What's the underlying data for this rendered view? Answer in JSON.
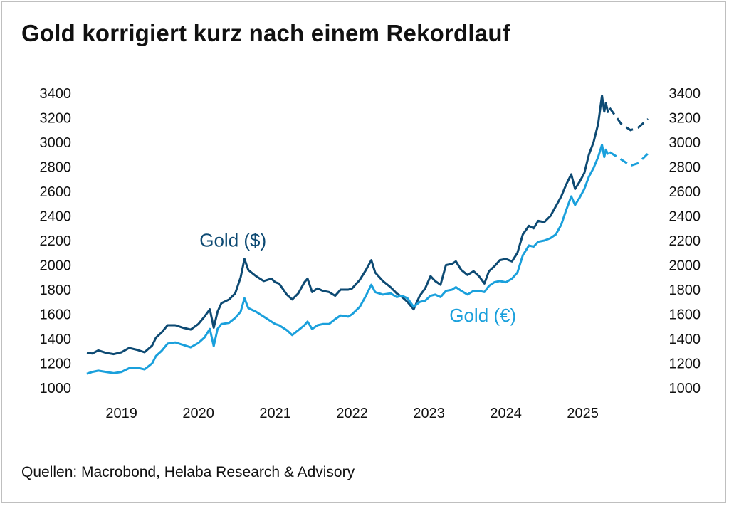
{
  "title": "Gold korrigiert kurz nach einem Rekordlauf",
  "source": "Quellen: Macrobond, Helaba Research & Advisory",
  "colors": {
    "gold_usd": "#0d4a73",
    "gold_eur": "#1aa0dc",
    "text": "#111111"
  },
  "chart_data": {
    "type": "line",
    "title": "Gold korrigiert kurz nach einem Rekordlauf",
    "xlabel": "",
    "ylabel": "",
    "x_range": [
      2018.55,
      2025.8
    ],
    "ylim": [
      1000,
      3400
    ],
    "y_ticks": [
      1000,
      1200,
      1400,
      1600,
      1800,
      2000,
      2200,
      2400,
      2600,
      2800,
      3000,
      3200,
      3400
    ],
    "x_ticks": [
      {
        "label": "2019",
        "x": 2019.0
      },
      {
        "label": "2020",
        "x": 2020.0
      },
      {
        "label": "2021",
        "x": 2021.0
      },
      {
        "label": "2022",
        "x": 2022.0
      },
      {
        "label": "2023",
        "x": 2023.0
      },
      {
        "label": "2024",
        "x": 2024.0
      },
      {
        "label": "2025",
        "x": 2025.0
      }
    ],
    "grid": false,
    "axes": "left and right, identical scale",
    "series": [
      {
        "name": "Gold ($)",
        "color": "#0d4a73",
        "points": [
          [
            2018.55,
            1285
          ],
          [
            2018.62,
            1280
          ],
          [
            2018.7,
            1305
          ],
          [
            2018.8,
            1285
          ],
          [
            2018.9,
            1275
          ],
          [
            2019.0,
            1290
          ],
          [
            2019.1,
            1325
          ],
          [
            2019.2,
            1310
          ],
          [
            2019.3,
            1290
          ],
          [
            2019.4,
            1345
          ],
          [
            2019.45,
            1410
          ],
          [
            2019.52,
            1450
          ],
          [
            2019.6,
            1510
          ],
          [
            2019.7,
            1510
          ],
          [
            2019.8,
            1490
          ],
          [
            2019.9,
            1475
          ],
          [
            2020.0,
            1520
          ],
          [
            2020.08,
            1580
          ],
          [
            2020.15,
            1640
          ],
          [
            2020.2,
            1490
          ],
          [
            2020.25,
            1620
          ],
          [
            2020.3,
            1690
          ],
          [
            2020.4,
            1720
          ],
          [
            2020.48,
            1770
          ],
          [
            2020.55,
            1900
          ],
          [
            2020.6,
            2050
          ],
          [
            2020.65,
            1960
          ],
          [
            2020.75,
            1910
          ],
          [
            2020.85,
            1870
          ],
          [
            2020.95,
            1890
          ],
          [
            2021.0,
            1860
          ],
          [
            2021.05,
            1850
          ],
          [
            2021.15,
            1760
          ],
          [
            2021.22,
            1720
          ],
          [
            2021.3,
            1770
          ],
          [
            2021.38,
            1860
          ],
          [
            2021.42,
            1890
          ],
          [
            2021.48,
            1780
          ],
          [
            2021.55,
            1810
          ],
          [
            2021.62,
            1790
          ],
          [
            2021.7,
            1780
          ],
          [
            2021.78,
            1750
          ],
          [
            2021.85,
            1800
          ],
          [
            2021.95,
            1800
          ],
          [
            2022.0,
            1810
          ],
          [
            2022.1,
            1880
          ],
          [
            2022.18,
            1960
          ],
          [
            2022.25,
            2040
          ],
          [
            2022.3,
            1940
          ],
          [
            2022.4,
            1870
          ],
          [
            2022.5,
            1820
          ],
          [
            2022.58,
            1770
          ],
          [
            2022.65,
            1740
          ],
          [
            2022.72,
            1700
          ],
          [
            2022.8,
            1640
          ],
          [
            2022.88,
            1750
          ],
          [
            2022.95,
            1810
          ],
          [
            2023.02,
            1910
          ],
          [
            2023.08,
            1870
          ],
          [
            2023.15,
            1840
          ],
          [
            2023.22,
            2000
          ],
          [
            2023.3,
            2010
          ],
          [
            2023.35,
            2030
          ],
          [
            2023.42,
            1960
          ],
          [
            2023.5,
            1920
          ],
          [
            2023.58,
            1950
          ],
          [
            2023.65,
            1910
          ],
          [
            2023.72,
            1850
          ],
          [
            2023.78,
            1950
          ],
          [
            2023.85,
            1990
          ],
          [
            2023.92,
            2040
          ],
          [
            2024.0,
            2050
          ],
          [
            2024.08,
            2030
          ],
          [
            2024.15,
            2100
          ],
          [
            2024.22,
            2250
          ],
          [
            2024.3,
            2320
          ],
          [
            2024.36,
            2300
          ],
          [
            2024.42,
            2360
          ],
          [
            2024.5,
            2350
          ],
          [
            2024.58,
            2400
          ],
          [
            2024.65,
            2480
          ],
          [
            2024.72,
            2560
          ],
          [
            2024.78,
            2650
          ],
          [
            2024.85,
            2740
          ],
          [
            2024.9,
            2620
          ],
          [
            2024.96,
            2680
          ],
          [
            2025.02,
            2750
          ],
          [
            2025.08,
            2900
          ],
          [
            2025.14,
            3000
          ],
          [
            2025.2,
            3150
          ],
          [
            2025.25,
            3380
          ],
          [
            2025.28,
            3250
          ],
          [
            2025.3,
            3320
          ],
          [
            2025.33,
            3240
          ]
        ],
        "forecast": [
          [
            2025.35,
            3280
          ],
          [
            2025.5,
            3150
          ],
          [
            2025.62,
            3100
          ],
          [
            2025.72,
            3120
          ],
          [
            2025.85,
            3190
          ]
        ]
      },
      {
        "name": "Gold (€)",
        "color": "#1aa0dc",
        "points": [
          [
            2018.55,
            1115
          ],
          [
            2018.62,
            1130
          ],
          [
            2018.7,
            1140
          ],
          [
            2018.8,
            1130
          ],
          [
            2018.9,
            1120
          ],
          [
            2019.0,
            1130
          ],
          [
            2019.1,
            1160
          ],
          [
            2019.2,
            1165
          ],
          [
            2019.3,
            1150
          ],
          [
            2019.4,
            1200
          ],
          [
            2019.45,
            1260
          ],
          [
            2019.52,
            1300
          ],
          [
            2019.6,
            1360
          ],
          [
            2019.7,
            1370
          ],
          [
            2019.8,
            1350
          ],
          [
            2019.9,
            1330
          ],
          [
            2020.0,
            1365
          ],
          [
            2020.08,
            1410
          ],
          [
            2020.15,
            1480
          ],
          [
            2020.2,
            1340
          ],
          [
            2020.25,
            1480
          ],
          [
            2020.3,
            1520
          ],
          [
            2020.4,
            1530
          ],
          [
            2020.48,
            1570
          ],
          [
            2020.55,
            1620
          ],
          [
            2020.6,
            1730
          ],
          [
            2020.65,
            1650
          ],
          [
            2020.75,
            1620
          ],
          [
            2020.85,
            1580
          ],
          [
            2020.95,
            1540
          ],
          [
            2021.0,
            1520
          ],
          [
            2021.05,
            1510
          ],
          [
            2021.15,
            1470
          ],
          [
            2021.22,
            1430
          ],
          [
            2021.3,
            1470
          ],
          [
            2021.38,
            1510
          ],
          [
            2021.42,
            1540
          ],
          [
            2021.48,
            1480
          ],
          [
            2021.55,
            1510
          ],
          [
            2021.62,
            1520
          ],
          [
            2021.7,
            1520
          ],
          [
            2021.78,
            1560
          ],
          [
            2021.85,
            1590
          ],
          [
            2021.95,
            1580
          ],
          [
            2022.0,
            1600
          ],
          [
            2022.1,
            1660
          ],
          [
            2022.18,
            1750
          ],
          [
            2022.25,
            1840
          ],
          [
            2022.3,
            1780
          ],
          [
            2022.4,
            1760
          ],
          [
            2022.5,
            1770
          ],
          [
            2022.58,
            1740
          ],
          [
            2022.65,
            1750
          ],
          [
            2022.72,
            1730
          ],
          [
            2022.8,
            1660
          ],
          [
            2022.88,
            1700
          ],
          [
            2022.95,
            1710
          ],
          [
            2023.02,
            1750
          ],
          [
            2023.08,
            1760
          ],
          [
            2023.15,
            1740
          ],
          [
            2023.22,
            1790
          ],
          [
            2023.3,
            1800
          ],
          [
            2023.35,
            1820
          ],
          [
            2023.42,
            1790
          ],
          [
            2023.5,
            1760
          ],
          [
            2023.58,
            1790
          ],
          [
            2023.65,
            1790
          ],
          [
            2023.72,
            1780
          ],
          [
            2023.78,
            1830
          ],
          [
            2023.85,
            1860
          ],
          [
            2023.92,
            1870
          ],
          [
            2024.0,
            1860
          ],
          [
            2024.08,
            1890
          ],
          [
            2024.15,
            1940
          ],
          [
            2024.22,
            2080
          ],
          [
            2024.3,
            2160
          ],
          [
            2024.36,
            2150
          ],
          [
            2024.42,
            2190
          ],
          [
            2024.5,
            2200
          ],
          [
            2024.58,
            2220
          ],
          [
            2024.65,
            2250
          ],
          [
            2024.72,
            2330
          ],
          [
            2024.78,
            2440
          ],
          [
            2024.85,
            2560
          ],
          [
            2024.9,
            2490
          ],
          [
            2024.96,
            2550
          ],
          [
            2025.02,
            2620
          ],
          [
            2025.08,
            2720
          ],
          [
            2025.14,
            2790
          ],
          [
            2025.2,
            2880
          ],
          [
            2025.25,
            2980
          ],
          [
            2025.28,
            2880
          ],
          [
            2025.3,
            2940
          ],
          [
            2025.33,
            2900
          ]
        ],
        "forecast": [
          [
            2025.35,
            2920
          ],
          [
            2025.5,
            2860
          ],
          [
            2025.62,
            2810
          ],
          [
            2025.72,
            2830
          ],
          [
            2025.85,
            2910
          ]
        ]
      }
    ],
    "annotations": [
      {
        "text": "Gold ($)",
        "series": "Gold ($)",
        "at": [
          2020.45,
          2150
        ]
      },
      {
        "text": "Gold (€)",
        "series": "Gold (€)",
        "at": [
          2023.7,
          1540
        ]
      }
    ]
  }
}
